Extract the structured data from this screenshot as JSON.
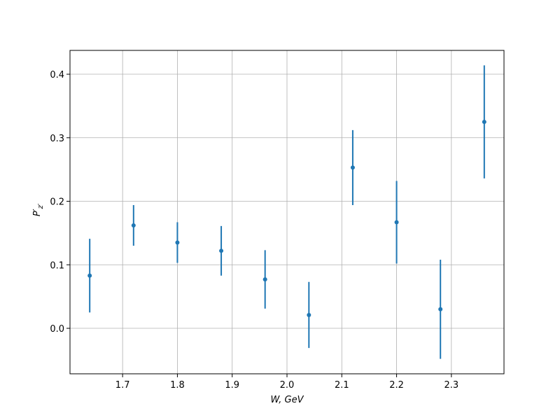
{
  "chart_data": {
    "type": "errorbar",
    "xlabel": "W, GeV",
    "ylabel": {
      "base": "P′",
      "sub": "z′"
    },
    "x": [
      1.64,
      1.72,
      1.8,
      1.88,
      1.96,
      2.04,
      2.12,
      2.2,
      2.28,
      2.36
    ],
    "series": [
      {
        "color": "#1f77b4",
        "values": [
          0.083,
          0.162,
          0.135,
          0.122,
          0.077,
          0.021,
          0.253,
          0.167,
          0.03,
          0.325
        ],
        "errors": [
          0.058,
          0.032,
          0.032,
          0.039,
          0.046,
          0.052,
          0.059,
          0.065,
          0.078,
          0.089
        ]
      }
    ],
    "xlim": [
      1.604,
      2.396
    ],
    "ylim": [
      -0.0716,
      0.4375
    ],
    "xticks": [
      1.7,
      1.8,
      1.9,
      {
        "value": 2.0,
        "label": "2.0"
      },
      2.1,
      2.2,
      2.3
    ],
    "yticks": [
      {
        "value": 0,
        "label": "0.0"
      },
      0.1,
      0.2,
      0.3,
      0.4
    ],
    "grid": true
  }
}
